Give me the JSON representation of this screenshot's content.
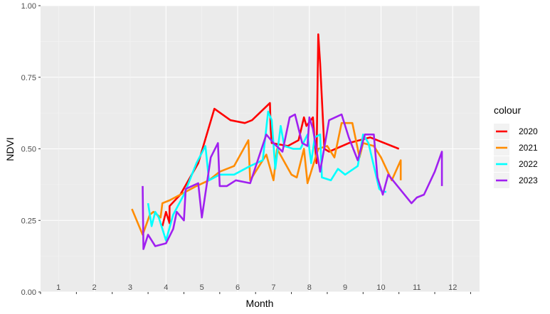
{
  "chart_data": {
    "type": "line",
    "xlabel": "Month",
    "ylabel": "NDVI",
    "xlim": [
      0.5,
      12.75
    ],
    "ylim": [
      0,
      1
    ],
    "grid": true,
    "legend_title": "colour",
    "legend_position": "right",
    "x_tick_labels": [
      "1",
      "2",
      "3",
      "4",
      "5",
      "6",
      "7",
      "8",
      "9",
      "10",
      "11",
      "12"
    ],
    "y_tick_labels": [
      "0.00",
      "0.25",
      "0.50",
      "0.75",
      "1.00"
    ],
    "y_ticks": [
      0,
      0.25,
      0.5,
      0.75,
      1.0
    ],
    "series": [
      {
        "name": "2020",
        "color": "#ff0000",
        "points": [
          [
            3.9,
            0.23
          ],
          [
            4.0,
            0.28
          ],
          [
            4.1,
            0.24
          ],
          [
            4.1,
            0.3
          ],
          [
            4.4,
            0.34
          ],
          [
            4.9,
            0.45
          ],
          [
            5.35,
            0.64
          ],
          [
            5.8,
            0.6
          ],
          [
            6.2,
            0.59
          ],
          [
            6.4,
            0.6
          ],
          [
            6.9,
            0.66
          ],
          [
            6.92,
            0.57
          ],
          [
            6.95,
            0.52
          ],
          [
            7.4,
            0.51
          ],
          [
            7.7,
            0.53
          ],
          [
            7.85,
            0.61
          ],
          [
            7.92,
            0.58
          ],
          [
            8.1,
            0.61
          ],
          [
            8.2,
            0.45
          ],
          [
            8.25,
            0.9
          ],
          [
            8.3,
            0.8
          ],
          [
            8.42,
            0.5
          ],
          [
            8.55,
            0.49
          ],
          [
            9.1,
            0.52
          ],
          [
            9.7,
            0.54
          ],
          [
            10.5,
            0.5
          ]
        ]
      },
      {
        "name": "2021",
        "color": "#ff8c00",
        "points": [
          [
            3.05,
            0.29
          ],
          [
            3.35,
            0.2
          ],
          [
            3.55,
            0.27
          ],
          [
            3.65,
            0.28
          ],
          [
            3.85,
            0.26
          ],
          [
            3.9,
            0.31
          ],
          [
            4.1,
            0.32
          ],
          [
            4.4,
            0.34
          ],
          [
            4.85,
            0.37
          ],
          [
            5.2,
            0.39
          ],
          [
            5.5,
            0.42
          ],
          [
            5.9,
            0.44
          ],
          [
            6.3,
            0.53
          ],
          [
            6.35,
            0.39
          ],
          [
            6.8,
            0.48
          ],
          [
            7.0,
            0.39
          ],
          [
            7.1,
            0.5
          ],
          [
            7.5,
            0.41
          ],
          [
            7.65,
            0.4
          ],
          [
            7.85,
            0.5
          ],
          [
            7.95,
            0.38
          ],
          [
            8.25,
            0.5
          ],
          [
            8.5,
            0.51
          ],
          [
            8.7,
            0.47
          ],
          [
            8.9,
            0.59
          ],
          [
            9.2,
            0.59
          ],
          [
            9.4,
            0.47
          ],
          [
            9.5,
            0.52
          ],
          [
            9.8,
            0.51
          ],
          [
            10.0,
            0.47
          ],
          [
            10.3,
            0.39
          ],
          [
            10.55,
            0.46
          ],
          [
            10.55,
            0.39
          ]
        ]
      },
      {
        "name": "2022",
        "color": "#00ffff",
        "points": [
          [
            3.5,
            0.31
          ],
          [
            3.6,
            0.23
          ],
          [
            3.7,
            0.28
          ],
          [
            3.8,
            0.26
          ],
          [
            4.0,
            0.18
          ],
          [
            4.2,
            0.27
          ],
          [
            4.5,
            0.34
          ],
          [
            4.85,
            0.45
          ],
          [
            5.1,
            0.51
          ],
          [
            5.2,
            0.39
          ],
          [
            5.5,
            0.41
          ],
          [
            5.9,
            0.41
          ],
          [
            6.35,
            0.44
          ],
          [
            6.7,
            0.46
          ],
          [
            6.85,
            0.63
          ],
          [
            6.95,
            0.6
          ],
          [
            7.05,
            0.43
          ],
          [
            7.2,
            0.58
          ],
          [
            7.3,
            0.51
          ],
          [
            7.55,
            0.5
          ],
          [
            7.75,
            0.5
          ],
          [
            7.95,
            0.55
          ],
          [
            8.05,
            0.45
          ],
          [
            8.15,
            0.54
          ],
          [
            8.3,
            0.55
          ],
          [
            8.35,
            0.4
          ],
          [
            8.6,
            0.39
          ],
          [
            8.8,
            0.43
          ],
          [
            9.0,
            0.41
          ],
          [
            9.35,
            0.44
          ],
          [
            9.5,
            0.55
          ],
          [
            9.65,
            0.52
          ],
          [
            9.8,
            0.44
          ],
          [
            9.95,
            0.36
          ],
          [
            10.05,
            0.35
          ],
          [
            10.15,
            0.35
          ]
        ]
      },
      {
        "name": "2023",
        "color": "#a020f0",
        "points": [
          [
            3.35,
            0.37
          ],
          [
            3.37,
            0.15
          ],
          [
            3.5,
            0.2
          ],
          [
            3.7,
            0.16
          ],
          [
            4.0,
            0.17
          ],
          [
            4.2,
            0.22
          ],
          [
            4.3,
            0.28
          ],
          [
            4.5,
            0.25
          ],
          [
            4.55,
            0.36
          ],
          [
            4.9,
            0.38
          ],
          [
            5.0,
            0.26
          ],
          [
            5.25,
            0.47
          ],
          [
            5.45,
            0.52
          ],
          [
            5.5,
            0.37
          ],
          [
            5.7,
            0.37
          ],
          [
            5.95,
            0.39
          ],
          [
            6.35,
            0.38
          ],
          [
            6.8,
            0.55
          ],
          [
            7.0,
            0.52
          ],
          [
            7.25,
            0.49
          ],
          [
            7.45,
            0.61
          ],
          [
            7.6,
            0.62
          ],
          [
            7.8,
            0.52
          ],
          [
            7.95,
            0.51
          ],
          [
            8.0,
            0.61
          ],
          [
            8.1,
            0.57
          ],
          [
            8.3,
            0.42
          ],
          [
            8.55,
            0.6
          ],
          [
            8.9,
            0.62
          ],
          [
            9.1,
            0.54
          ],
          [
            9.35,
            0.46
          ],
          [
            9.55,
            0.55
          ],
          [
            9.8,
            0.55
          ],
          [
            9.9,
            0.4
          ],
          [
            10.05,
            0.34
          ],
          [
            10.2,
            0.41
          ],
          [
            10.85,
            0.31
          ],
          [
            11.0,
            0.33
          ],
          [
            11.2,
            0.34
          ],
          [
            11.5,
            0.42
          ],
          [
            11.7,
            0.49
          ],
          [
            11.7,
            0.37
          ]
        ]
      }
    ]
  }
}
